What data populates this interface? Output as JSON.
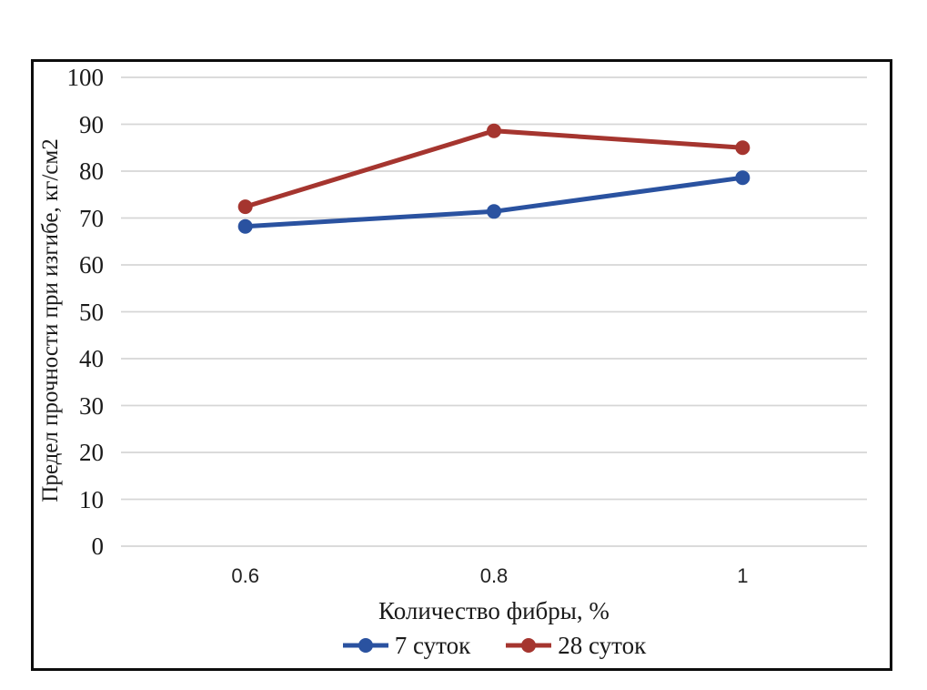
{
  "chart_data": {
    "type": "line",
    "title": "",
    "categories": [
      "0.6",
      "0.8",
      "1"
    ],
    "series": [
      {
        "name": "7 суток",
        "color": "#2A52A0",
        "values": [
          68.2,
          71.4,
          78.6
        ]
      },
      {
        "name": "28 суток",
        "color": "#A5352F",
        "values": [
          72.4,
          88.6,
          85.0
        ]
      }
    ],
    "xlabel": "Количество фибры, %",
    "ylabel": "Предел прочности при изгибе, кг/см2",
    "ylim": [
      0,
      100
    ],
    "y_ticks": [
      100,
      90,
      80,
      70,
      60,
      50,
      40,
      30,
      20,
      10,
      0
    ],
    "grid": "horizontal",
    "gridline_color": "#D6D6D6",
    "frame_border_color": "#0d0d0d",
    "legend_position": "bottom"
  }
}
